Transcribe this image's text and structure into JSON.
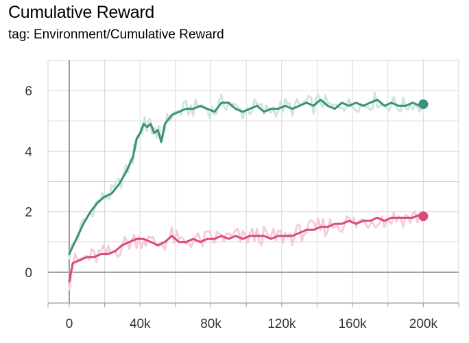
{
  "header": {
    "title": "Cumulative Reward",
    "subtitle": "tag: Environment/Cumulative Reward"
  },
  "chart_data": {
    "type": "line",
    "title": "Cumulative Reward",
    "subtitle": "tag: Environment/Cumulative Reward",
    "xlabel": "",
    "ylabel": "",
    "xlim": [
      -12000,
      220000
    ],
    "ylim": [
      -1,
      7
    ],
    "grid": true,
    "x_ticks": [
      0,
      40000,
      80000,
      120000,
      160000,
      200000
    ],
    "x_tick_labels": [
      "0",
      "40k",
      "80k",
      "120k",
      "160k",
      "200k"
    ],
    "y_ticks": [
      0,
      2,
      4,
      6
    ],
    "y_tick_labels": [
      "0",
      "2",
      "4",
      "6"
    ],
    "series": [
      {
        "color": "#3a8f7e",
        "raw_color": "#cfe5de",
        "points": [
          [
            0,
            0.6
          ],
          [
            4000,
            1.1
          ],
          [
            8000,
            1.6
          ],
          [
            12000,
            2.0
          ],
          [
            16000,
            2.3
          ],
          [
            20000,
            2.5
          ],
          [
            24000,
            2.6
          ],
          [
            28000,
            2.9
          ],
          [
            32000,
            3.3
          ],
          [
            36000,
            3.8
          ],
          [
            38000,
            4.4
          ],
          [
            40000,
            4.6
          ],
          [
            42000,
            4.9
          ],
          [
            44000,
            4.8
          ],
          [
            46000,
            4.9
          ],
          [
            48000,
            4.6
          ],
          [
            50000,
            4.7
          ],
          [
            52000,
            4.3
          ],
          [
            54000,
            4.9
          ],
          [
            58000,
            5.2
          ],
          [
            62000,
            5.3
          ],
          [
            66000,
            5.4
          ],
          [
            70000,
            5.4
          ],
          [
            74000,
            5.5
          ],
          [
            78000,
            5.4
          ],
          [
            82000,
            5.3
          ],
          [
            86000,
            5.6
          ],
          [
            90000,
            5.6
          ],
          [
            94000,
            5.4
          ],
          [
            98000,
            5.3
          ],
          [
            102000,
            5.4
          ],
          [
            106000,
            5.5
          ],
          [
            110000,
            5.3
          ],
          [
            114000,
            5.4
          ],
          [
            118000,
            5.4
          ],
          [
            122000,
            5.5
          ],
          [
            126000,
            5.4
          ],
          [
            130000,
            5.5
          ],
          [
            134000,
            5.6
          ],
          [
            138000,
            5.5
          ],
          [
            142000,
            5.7
          ],
          [
            146000,
            5.5
          ],
          [
            150000,
            5.4
          ],
          [
            154000,
            5.6
          ],
          [
            158000,
            5.5
          ],
          [
            162000,
            5.6
          ],
          [
            166000,
            5.5
          ],
          [
            170000,
            5.6
          ],
          [
            174000,
            5.7
          ],
          [
            178000,
            5.5
          ],
          [
            182000,
            5.6
          ],
          [
            186000,
            5.5
          ],
          [
            190000,
            5.5
          ],
          [
            194000,
            5.6
          ],
          [
            198000,
            5.5
          ],
          [
            200000,
            5.55
          ]
        ]
      },
      {
        "color": "#d94a7b",
        "raw_color": "#f5ccd9",
        "points": [
          [
            0,
            -0.3
          ],
          [
            2000,
            0.3
          ],
          [
            6000,
            0.4
          ],
          [
            10000,
            0.5
          ],
          [
            14000,
            0.5
          ],
          [
            18000,
            0.6
          ],
          [
            22000,
            0.6
          ],
          [
            26000,
            0.7
          ],
          [
            30000,
            0.9
          ],
          [
            34000,
            1.0
          ],
          [
            38000,
            1.1
          ],
          [
            42000,
            1.1
          ],
          [
            46000,
            1.0
          ],
          [
            50000,
            0.9
          ],
          [
            54000,
            1.0
          ],
          [
            58000,
            1.2
          ],
          [
            62000,
            1.0
          ],
          [
            66000,
            1.0
          ],
          [
            70000,
            1.1
          ],
          [
            74000,
            1.0
          ],
          [
            78000,
            1.1
          ],
          [
            82000,
            1.1
          ],
          [
            86000,
            1.2
          ],
          [
            90000,
            1.1
          ],
          [
            94000,
            1.2
          ],
          [
            98000,
            1.1
          ],
          [
            102000,
            1.2
          ],
          [
            106000,
            1.2
          ],
          [
            110000,
            1.2
          ],
          [
            114000,
            1.1
          ],
          [
            118000,
            1.2
          ],
          [
            122000,
            1.2
          ],
          [
            126000,
            1.2
          ],
          [
            130000,
            1.3
          ],
          [
            134000,
            1.4
          ],
          [
            138000,
            1.4
          ],
          [
            142000,
            1.5
          ],
          [
            146000,
            1.5
          ],
          [
            150000,
            1.6
          ],
          [
            154000,
            1.6
          ],
          [
            158000,
            1.7
          ],
          [
            162000,
            1.6
          ],
          [
            166000,
            1.7
          ],
          [
            170000,
            1.7
          ],
          [
            174000,
            1.8
          ],
          [
            178000,
            1.7
          ],
          [
            182000,
            1.8
          ],
          [
            186000,
            1.8
          ],
          [
            190000,
            1.8
          ],
          [
            194000,
            1.8
          ],
          [
            198000,
            1.9
          ],
          [
            200000,
            1.85
          ]
        ]
      }
    ]
  }
}
